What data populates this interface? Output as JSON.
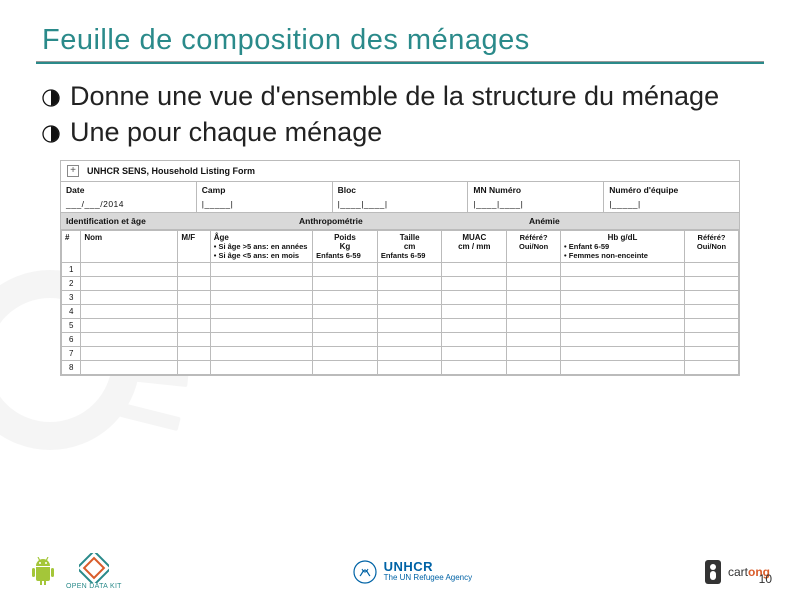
{
  "title": "Feuille de composition des ménages",
  "bullets": [
    "Donne une vue d'ensemble de la structure du ménage",
    "Une pour chaque ménage"
  ],
  "form": {
    "heading": "UNHCR SENS, Household Listing Form",
    "meta": [
      {
        "label": "Date",
        "value": "___/___/2014"
      },
      {
        "label": "Camp",
        "value": "|_____|"
      },
      {
        "label": "Bloc",
        "value": "|____|____|"
      },
      {
        "label": "MN Numéro",
        "value": "|____|____|"
      },
      {
        "label": "Numéro d'équipe",
        "value": "|_____|"
      }
    ],
    "sections": {
      "ident": "Identification et âge",
      "anthro": "Anthropométrie",
      "anemie": "Anémie"
    },
    "cols": {
      "num": "#",
      "nom": "Nom",
      "mf": "M/F",
      "age_hdr": "Âge",
      "age_note": "• Si âge >5 ans: en années\n• Si âge <5 ans: en mois",
      "poids_hdr": "Poids\nKg",
      "poids_sub": "Enfants 6-59",
      "taille_hdr": "Taille\ncm",
      "taille_sub": "Enfants 6-59",
      "muac_hdr": "MUAC\ncm / mm",
      "muac_sub": "Référé?\nOui/Non",
      "hb_hdr": "Hb g/dL",
      "hb_note": "• Enfant 6-59\n• Femmes non-enceinte",
      "ref_hdr": "Référé?\nOui/Non"
    },
    "rows": [
      1,
      2,
      3,
      4,
      5,
      6,
      7,
      8
    ],
    "col_widths": {
      "num": 18,
      "nom": 90,
      "mf": 30,
      "age": 95,
      "poids": 60,
      "taille": 60,
      "muac": 60,
      "muac_ref": 50,
      "hb": 115,
      "ref": 50
    },
    "colors": {
      "section_bg": "#d9d9d9",
      "border": "#bbbbbb"
    }
  },
  "footer": {
    "odk": "OPEN DATA KIT",
    "unhcr_big": "UNHCR",
    "unhcr_small": "The UN Refugee Agency",
    "cartong_pre": "cart",
    "cartong_on": "ong",
    "page": "10"
  },
  "colors": {
    "accent": "#2a8a8a",
    "unhcr": "#0063a6",
    "cartong": "#d95c2a"
  }
}
